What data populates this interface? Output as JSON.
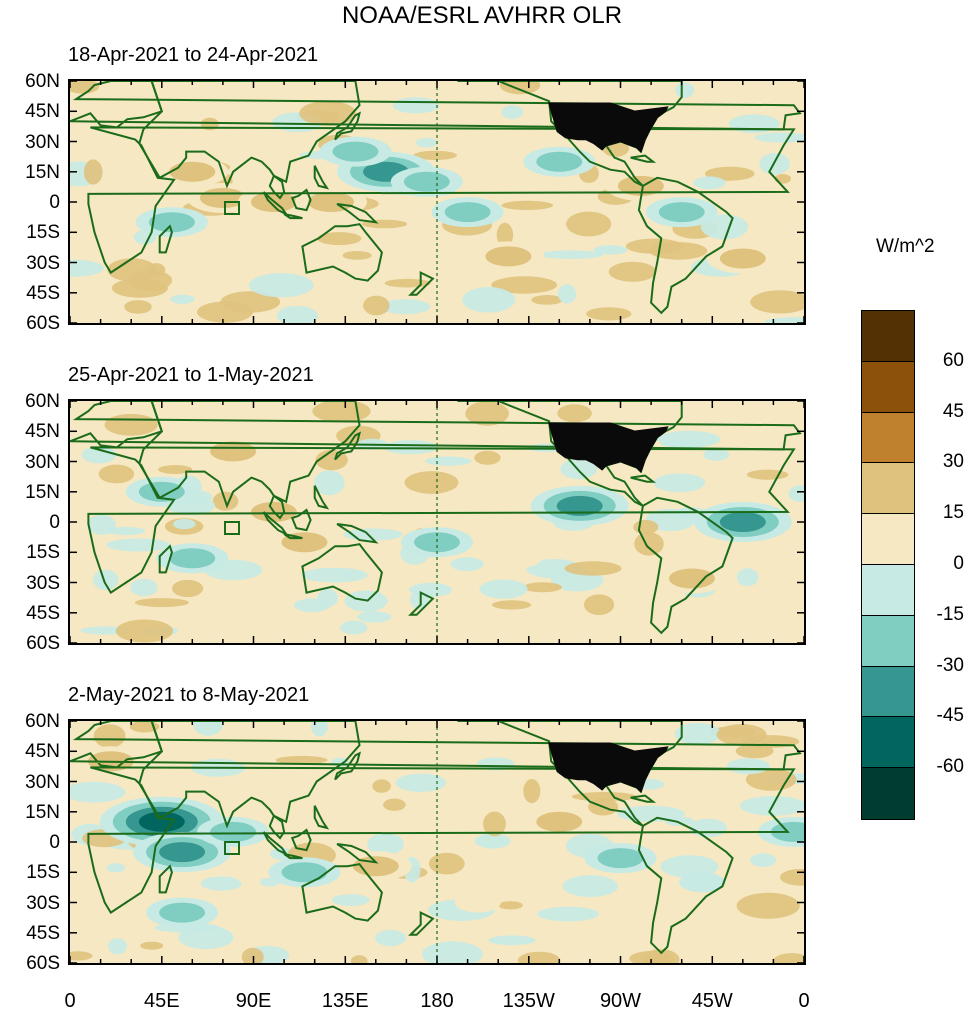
{
  "figure": {
    "title": "NOAA/ESRL AVHRR OLR",
    "colorbar": {
      "unit": "W/m^2",
      "colors": [
        "#543005",
        "#8c510a",
        "#bf812d",
        "#dfc27d",
        "#f6e8c3",
        "#c7eae5",
        "#80cdc1",
        "#35978f",
        "#01665e",
        "#003c30"
      ],
      "labels": [
        "60",
        "45",
        "30",
        "15",
        "0",
        "-15",
        "-30",
        "-45",
        "-60"
      ]
    },
    "y_ticks": [
      "60N",
      "45N",
      "30N",
      "15N",
      "0",
      "15S",
      "30S",
      "45S",
      "60S"
    ],
    "x_ticks": [
      "0",
      "45E",
      "90E",
      "135E",
      "180",
      "135W",
      "90W",
      "45W",
      "0"
    ],
    "coast_color": "#1a6b1a"
  },
  "chart_data": [
    {
      "type": "heatmap",
      "title": "18-Apr-2021 to 24-Apr-2021",
      "lat_range": [
        -60,
        60
      ],
      "lon_range": [
        0,
        360
      ],
      "anomalies": [
        {
          "lon": 75,
          "lat": 2,
          "value": 30
        },
        {
          "lon": 100,
          "lat": 0,
          "value": 30
        },
        {
          "lon": 128,
          "lat": 0,
          "value": 22
        },
        {
          "lon": 60,
          "lat": 15,
          "value": 20
        },
        {
          "lon": 155,
          "lat": 15,
          "value": -40
        },
        {
          "lon": 140,
          "lat": 25,
          "value": -30
        },
        {
          "lon": 175,
          "lat": 10,
          "value": -25
        },
        {
          "lon": 195,
          "lat": -5,
          "value": -25
        },
        {
          "lon": 215,
          "lat": -27,
          "value": 30
        },
        {
          "lon": 50,
          "lat": -10,
          "value": -25
        },
        {
          "lon": 280,
          "lat": 8,
          "value": 30
        },
        {
          "lon": 300,
          "lat": -5,
          "value": -20
        },
        {
          "lon": 330,
          "lat": -28,
          "value": 18
        },
        {
          "lon": 240,
          "lat": 20,
          "value": -20
        }
      ]
    },
    {
      "type": "heatmap",
      "title": "25-Apr-2021 to 1-May-2021",
      "lat_range": [
        -60,
        60
      ],
      "lon_range": [
        0,
        360
      ],
      "anomalies": [
        {
          "lon": 115,
          "lat": -10,
          "value": 30
        },
        {
          "lon": 100,
          "lat": 5,
          "value": 25
        },
        {
          "lon": 80,
          "lat": 35,
          "value": 30
        },
        {
          "lon": 45,
          "lat": 15,
          "value": -30
        },
        {
          "lon": 60,
          "lat": -18,
          "value": -25
        },
        {
          "lon": 180,
          "lat": -10,
          "value": -30
        },
        {
          "lon": 250,
          "lat": 8,
          "value": -40
        },
        {
          "lon": 330,
          "lat": 0,
          "value": -35
        },
        {
          "lon": 305,
          "lat": -28,
          "value": 25
        },
        {
          "lon": 220,
          "lat": -18,
          "value": 15
        },
        {
          "lon": 300,
          "lat": 30,
          "value": 15
        }
      ]
    },
    {
      "type": "heatmap",
      "title": "2-May-2021 to 8-May-2021",
      "lat_range": [
        -60,
        60
      ],
      "lon_range": [
        0,
        360
      ],
      "anomalies": [
        {
          "lon": 45,
          "lat": 10,
          "value": -50
        },
        {
          "lon": 55,
          "lat": -5,
          "value": -40
        },
        {
          "lon": 80,
          "lat": 5,
          "value": -30
        },
        {
          "lon": 115,
          "lat": -15,
          "value": -25
        },
        {
          "lon": 55,
          "lat": -35,
          "value": -25
        },
        {
          "lon": 150,
          "lat": -12,
          "value": 30
        },
        {
          "lon": 240,
          "lat": 10,
          "value": 25
        },
        {
          "lon": 270,
          "lat": -8,
          "value": -25
        },
        {
          "lon": 355,
          "lat": 5,
          "value": -30
        },
        {
          "lon": 20,
          "lat": 40,
          "value": 25
        },
        {
          "lon": 200,
          "lat": -30,
          "value": 15
        },
        {
          "lon": 310,
          "lat": -20,
          "value": -15
        }
      ]
    }
  ]
}
